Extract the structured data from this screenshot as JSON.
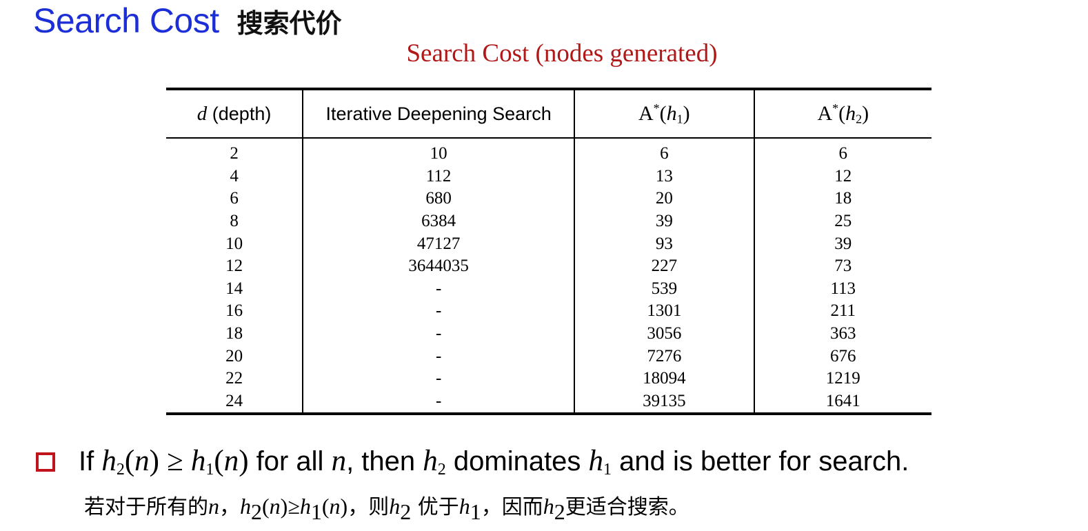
{
  "slide": {
    "title_en": "Search Cost",
    "title_zh": "搜索代价",
    "table_caption": "Search Cost (nodes generated)"
  },
  "table": {
    "headers": {
      "depth_var": "d",
      "depth_label": "(depth)",
      "ids": "Iterative Deepening Search",
      "astar_a": "A",
      "star": "*",
      "h": "h",
      "sub1": "1",
      "sub2": "2",
      "lparen": "(",
      "rparen": ")"
    },
    "rows": [
      [
        "2",
        "10",
        "6",
        "6"
      ],
      [
        "4",
        "112",
        "13",
        "12"
      ],
      [
        "6",
        "680",
        "20",
        "18"
      ],
      [
        "8",
        "6384",
        "39",
        "25"
      ],
      [
        "10",
        "47127",
        "93",
        "39"
      ],
      [
        "12",
        "3644035",
        "227",
        "73"
      ],
      [
        "14",
        "-",
        "539",
        "113"
      ],
      [
        "16",
        "-",
        "1301",
        "211"
      ],
      [
        "18",
        "-",
        "3056",
        "363"
      ],
      [
        "20",
        "-",
        "7276",
        "676"
      ],
      [
        "22",
        "-",
        "18094",
        "1219"
      ],
      [
        "24",
        "-",
        "39135",
        "1641"
      ]
    ]
  },
  "bullet": {
    "t_if": "If ",
    "h": "h",
    "sub2": "2",
    "sub1": "1",
    "n": "n",
    "ge": "≥",
    "lp": "(",
    "rp": ")",
    "t_forall": " for all ",
    "t_then": ", then ",
    "t_dominates": " dominates ",
    "t_rest": " and is better for search."
  },
  "zh": {
    "p1": "若对于所有的",
    "comma": "，",
    "p_then": "则",
    "p_better": " 优于",
    "p_so": "因而",
    "p_end": "更适合搜索。"
  }
}
